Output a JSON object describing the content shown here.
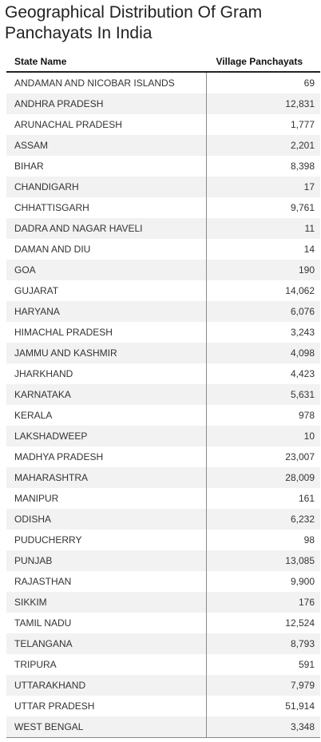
{
  "title": "Geographical Distribution Of Gram Panchayats In India",
  "table": {
    "headers": {
      "state": "State Name",
      "value": "Village Panchayats"
    },
    "rows": [
      {
        "state": "ANDAMAN AND NICOBAR ISLANDS",
        "value": "69"
      },
      {
        "state": "ANDHRA PRADESH",
        "value": "12,831"
      },
      {
        "state": "ARUNACHAL PRADESH",
        "value": "1,777"
      },
      {
        "state": "ASSAM",
        "value": "2,201"
      },
      {
        "state": "BIHAR",
        "value": "8,398"
      },
      {
        "state": "CHANDIGARH",
        "value": "17"
      },
      {
        "state": "CHHATTISGARH",
        "value": "9,761"
      },
      {
        "state": "DADRA AND NAGAR HAVELI",
        "value": "11"
      },
      {
        "state": "DAMAN AND DIU",
        "value": "14"
      },
      {
        "state": "GOA",
        "value": "190"
      },
      {
        "state": "GUJARAT",
        "value": "14,062"
      },
      {
        "state": "HARYANA",
        "value": "6,076"
      },
      {
        "state": "HIMACHAL PRADESH",
        "value": "3,243"
      },
      {
        "state": "JAMMU AND KASHMIR",
        "value": "4,098"
      },
      {
        "state": "JHARKHAND",
        "value": "4,423"
      },
      {
        "state": "KARNATAKA",
        "value": "5,631"
      },
      {
        "state": "KERALA",
        "value": "978"
      },
      {
        "state": "LAKSHADWEEP",
        "value": "10"
      },
      {
        "state": "MADHYA PRADESH",
        "value": "23,007"
      },
      {
        "state": "MAHARASHTRA",
        "value": "28,009"
      },
      {
        "state": "MANIPUR",
        "value": "161"
      },
      {
        "state": "ODISHA",
        "value": "6,232"
      },
      {
        "state": "PUDUCHERRY",
        "value": "98"
      },
      {
        "state": "PUNJAB",
        "value": "13,085"
      },
      {
        "state": "RAJASTHAN",
        "value": "9,900"
      },
      {
        "state": "SIKKIM",
        "value": "176"
      },
      {
        "state": "TAMIL NADU",
        "value": "12,524"
      },
      {
        "state": "TELANGANA",
        "value": "8,793"
      },
      {
        "state": "TRIPURA",
        "value": "591"
      },
      {
        "state": "UTTARAKHAND",
        "value": "7,979"
      },
      {
        "state": "UTTAR PRADESH",
        "value": "51,914"
      },
      {
        "state": "WEST BENGAL",
        "value": "3,348"
      }
    ]
  },
  "colors": {
    "stripe": "#f2f2f2",
    "text": "#333333",
    "header_rule": "#222222"
  }
}
